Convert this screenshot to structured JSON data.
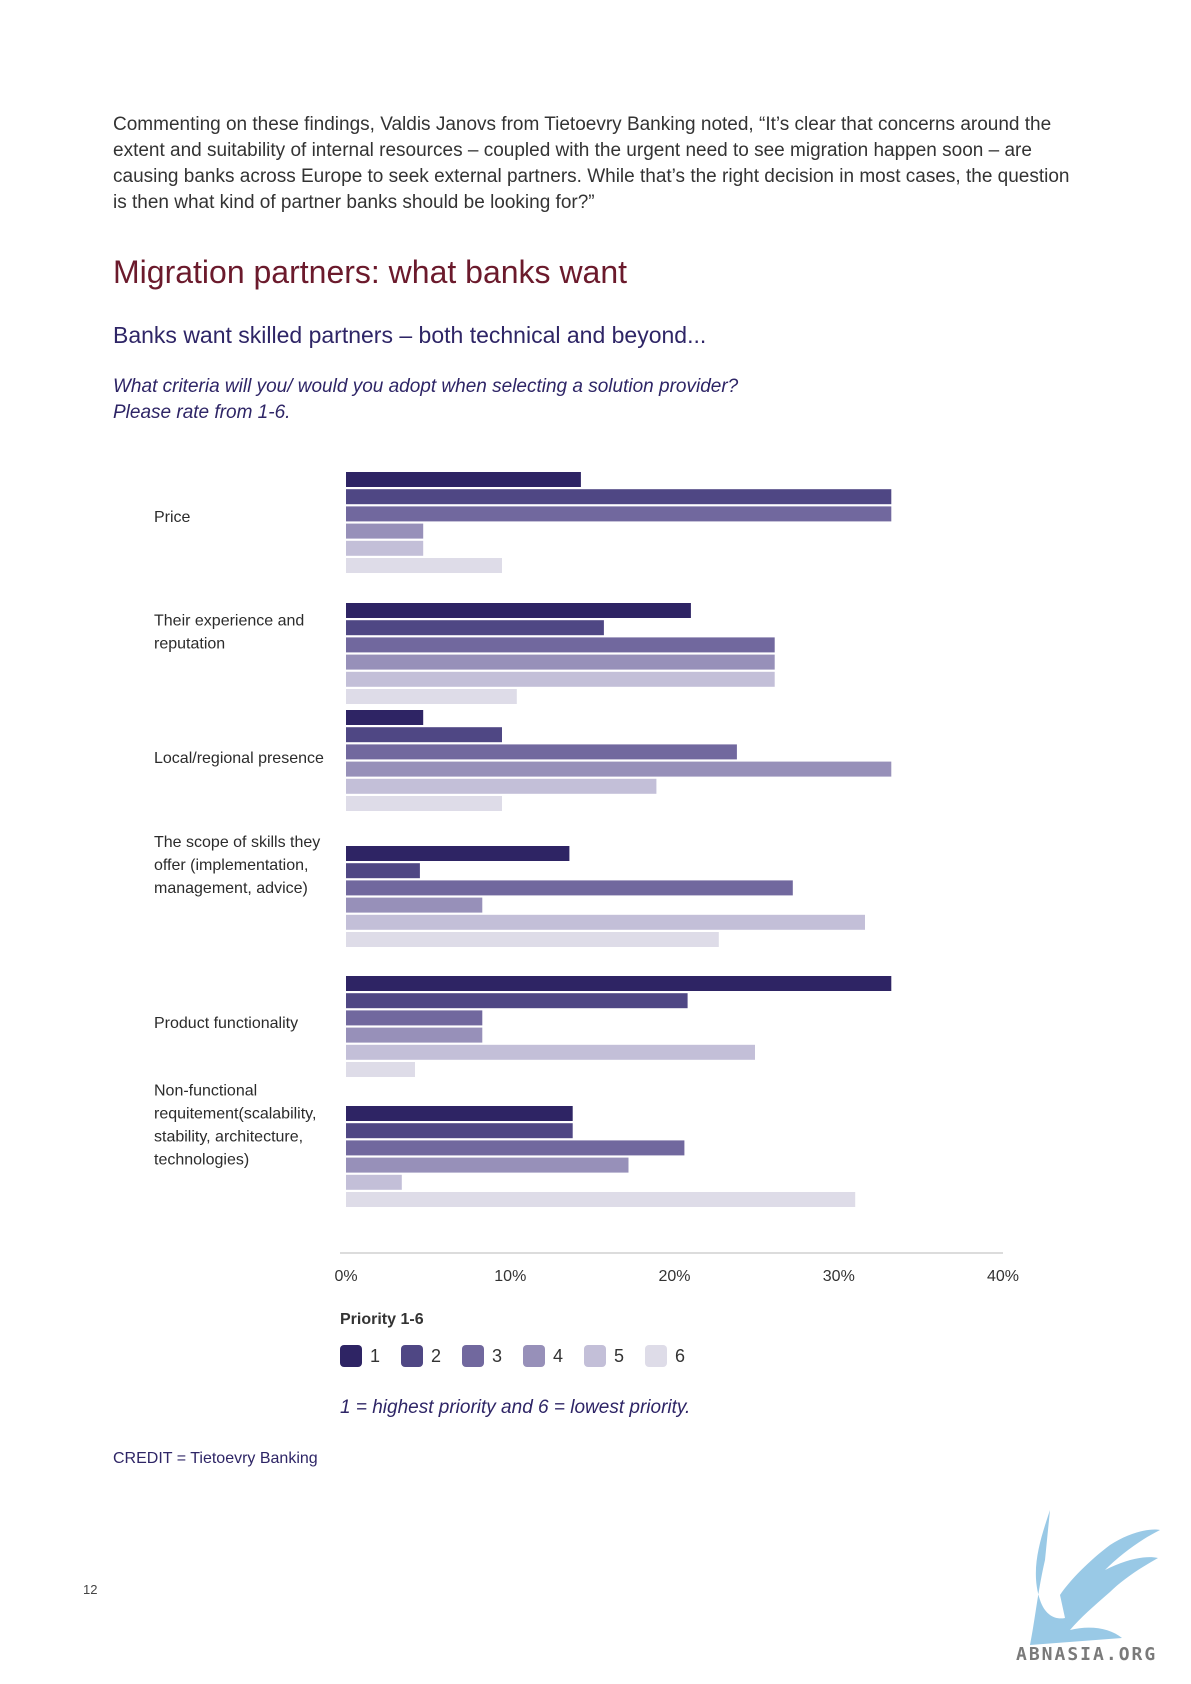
{
  "intro_text": "Commenting on these findings, Valdis Janovs from Tietoevry Banking noted, “It’s clear that concerns around the extent and suitability of internal resources – coupled with the urgent need to see migration happen soon – are causing banks across Europe to seek external partners. While that’s the right decision in most cases, the question is then what kind of partner banks should be looking for?”",
  "heading": "Migration partners: what banks want",
  "subheading": "Banks want skilled partners – both technical and beyond...",
  "question_line1": "What criteria will you/ would you adopt when selecting a solution provider?",
  "question_line2": "Please rate from 1-6.",
  "chart_data": {
    "type": "bar",
    "orientation": "horizontal",
    "categories": [
      [
        "Price"
      ],
      [
        "Their experience and",
        "reputation"
      ],
      [
        "Local/regional presence"
      ],
      [
        "The scope of skills they",
        "offer (implementation,",
        "management, advice)"
      ],
      [
        "Product functionality"
      ],
      [
        "Non-functional",
        "requitement(scalability,",
        "stability, architecture,",
        "technologies)"
      ]
    ],
    "series": [
      {
        "name": "1",
        "values": [
          14.3,
          21.0,
          4.7,
          13.6,
          33.2,
          13.8
        ]
      },
      {
        "name": "2",
        "values": [
          33.2,
          15.7,
          9.5,
          4.5,
          20.8,
          13.8
        ]
      },
      {
        "name": "3",
        "values": [
          33.2,
          26.1,
          23.8,
          27.2,
          8.3,
          20.6
        ]
      },
      {
        "name": "4",
        "values": [
          4.7,
          26.1,
          33.2,
          8.3,
          8.3,
          17.2
        ]
      },
      {
        "name": "5",
        "values": [
          4.7,
          26.1,
          18.9,
          31.6,
          24.9,
          3.4
        ]
      },
      {
        "name": "6",
        "values": [
          9.5,
          10.4,
          9.5,
          22.7,
          4.2,
          31.0
        ]
      }
    ],
    "colors": [
      "#2e2464",
      "#4f4784",
      "#71689e",
      "#9790b9",
      "#c3bfd8",
      "#dedce8"
    ],
    "xlim": [
      0,
      40
    ],
    "xticks": [
      "0%",
      "10%",
      "20%",
      "30%",
      "40%"
    ],
    "legend_title": "Priority 1-6",
    "legend_position": "bottom-left"
  },
  "note": "1 = highest priority and 6 = lowest priority.",
  "credit": "CREDIT = Tietoevry Banking",
  "page_number": "12",
  "watermark_text": "ABNASIA.ORG"
}
